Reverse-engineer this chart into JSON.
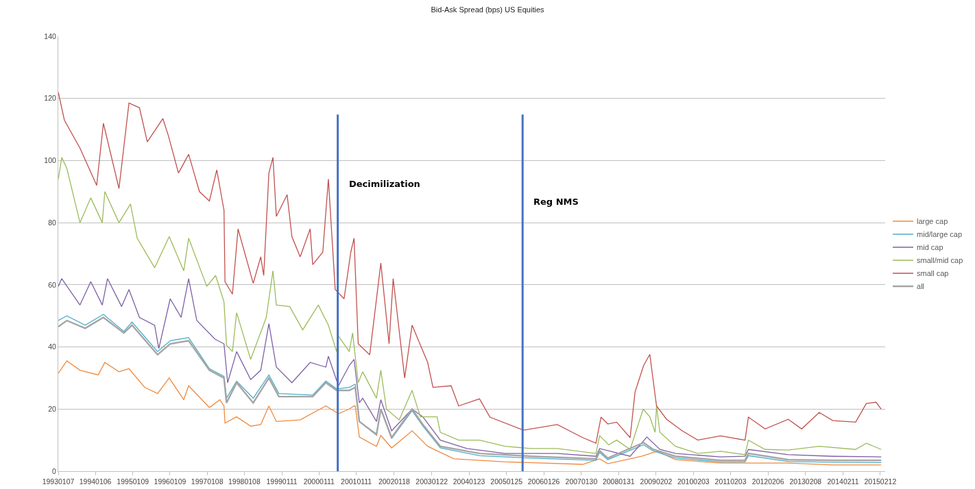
{
  "chart_data": {
    "type": "line",
    "title": "Bid-Ask Spread (bps) US Equities",
    "xlim": [
      "1993-01-07",
      "2015-04-01"
    ],
    "xticks": [
      {
        "value": "1993-01-07",
        "label": "19930107"
      },
      {
        "value": "1994-01-06",
        "label": "19940106"
      },
      {
        "value": "1995-01-09",
        "label": "19950109"
      },
      {
        "value": "1996-01-09",
        "label": "19960109"
      },
      {
        "value": "1997-01-08",
        "label": "19970108"
      },
      {
        "value": "1998-01-08",
        "label": "19980108"
      },
      {
        "value": "1999-01-11",
        "label": "19990111"
      },
      {
        "value": "2000-01-11",
        "label": "20000111"
      },
      {
        "value": "2001-01-11",
        "label": "20010111"
      },
      {
        "value": "2002-01-18",
        "label": "20020118"
      },
      {
        "value": "2003-01-22",
        "label": "20030122"
      },
      {
        "value": "2004-01-23",
        "label": "20040123"
      },
      {
        "value": "2005-01-25",
        "label": "20050125"
      },
      {
        "value": "2006-01-26",
        "label": "20060126"
      },
      {
        "value": "2007-01-30",
        "label": "20070130"
      },
      {
        "value": "2008-01-31",
        "label": "20080131"
      },
      {
        "value": "2009-02-02",
        "label": "20090202"
      },
      {
        "value": "2010-02-03",
        "label": "20100203"
      },
      {
        "value": "2011-02-03",
        "label": "20110203"
      },
      {
        "value": "2012-02-06",
        "label": "20120206"
      },
      {
        "value": "2013-02-08",
        "label": "20130208"
      },
      {
        "value": "2014-02-11",
        "label": "20140211"
      },
      {
        "value": "2015-02-12",
        "label": "20150212"
      }
    ],
    "ylim": [
      0,
      140
    ],
    "yticks": [
      0,
      20,
      40,
      60,
      80,
      100,
      120,
      140
    ],
    "grid": "y",
    "legend": "right",
    "marker": "none",
    "line_style": "solid",
    "ref_lines": [
      {
        "axis": "x",
        "value": "2000-07-13",
        "label": "Decimilization",
        "color": "#4472c4"
      },
      {
        "axis": "x",
        "value": "2005-07-02",
        "label": "Reg NMS",
        "color": "#4472c4"
      }
    ],
    "series": [
      {
        "name": "large cap",
        "color": "#f08a3c",
        "x": [
          "1993-01-07",
          "1993-04-01",
          "1993-08-08",
          "1994-02-03",
          "1994-04-09",
          "1994-08-26",
          "1994-12-02",
          "1995-05-05",
          "1995-09-09",
          "1996-01-01",
          "1996-05-23",
          "1996-07-10",
          "1997-01-30",
          "1997-05-12",
          "1997-06-22",
          "1997-07-02",
          "1997-10-24",
          "1998-03-11",
          "1998-06-18",
          "1998-09-06",
          "1998-11-18",
          "1999-07-10",
          "2000-03-18",
          "2000-07-20",
          "2000-11-03",
          "2000-12-20",
          "2001-01-01",
          "2001-02-10",
          "2001-07-28",
          "2001-09-09",
          "2001-12-24",
          "2002-07-13",
          "2002-12-13",
          "2003-08-26",
          "2005-01-11",
          "2007-02-13",
          "2007-07-28",
          "2007-10-16",
          "2008-09-13",
          "2009-02-13",
          "2009-08-11",
          "2010-10-27",
          "2011-07-20",
          "2012-08-22",
          "2013-11-03",
          "2015-02-21"
        ],
        "values": [
          31.5,
          35.5,
          32.5,
          31,
          35,
          32,
          33,
          27,
          25,
          30,
          23,
          27.5,
          20.5,
          23,
          21,
          15.5,
          17.5,
          14.5,
          15,
          21,
          16,
          16.5,
          21,
          18.5,
          20,
          21,
          21,
          11,
          8,
          11.5,
          7.5,
          13,
          8,
          4,
          3,
          2.2,
          4,
          2.4,
          4.8,
          6.4,
          3.7,
          2.6,
          2.6,
          2.6,
          2,
          2
        ]
      },
      {
        "name": "mid/large cap",
        "color": "#4bacc6",
        "x": [
          "1993-01-07",
          "1993-04-01",
          "1993-09-28",
          "1994-03-26",
          "1994-10-13",
          "1995-01-01",
          "1995-09-09",
          "1996-01-11",
          "1996-07-10",
          "1997-01-30",
          "1997-06-22",
          "1997-07-17",
          "1997-10-24",
          "1998-04-05",
          "1998-09-06",
          "1998-12-13",
          "1999-11-10",
          "2000-03-18",
          "2000-07-02",
          "2000-11-03",
          "2001-01-01",
          "2001-02-10",
          "2001-07-28",
          "2001-09-09",
          "2001-12-24",
          "2002-07-13",
          "2002-10-27",
          "2003-04-16",
          "2004-05-05",
          "2005-09-21",
          "2007-06-22",
          "2007-07-28",
          "2007-10-16",
          "2008-10-02",
          "2009-01-04",
          "2009-08-11",
          "2010-10-27",
          "2011-06-25",
          "2011-07-28",
          "2012-08-22",
          "2013-11-03",
          "2015-02-21"
        ],
        "values": [
          48.5,
          50,
          47,
          50.5,
          45,
          48,
          38.5,
          42,
          43,
          33,
          30.5,
          23.5,
          29,
          23.5,
          31,
          25,
          24.5,
          29,
          26.5,
          27,
          28,
          16,
          12,
          20,
          10.5,
          19.5,
          14.5,
          7.5,
          5,
          4.2,
          3.5,
          6,
          3.7,
          8.5,
          6.5,
          4.2,
          3,
          3,
          5,
          3.1,
          2.9,
          2.8
        ]
      },
      {
        "name": "mid cap",
        "color": "#7d5fa6",
        "x": [
          "1993-01-07",
          "1993-02-10",
          "1993-08-08",
          "1993-11-22",
          "1994-03-15",
          "1994-05-05",
          "1994-09-21",
          "1994-12-02",
          "1995-03-15",
          "1995-08-11",
          "1995-09-21",
          "1996-01-11",
          "1996-04-27",
          "1996-07-10",
          "1996-09-28",
          "1997-03-26",
          "1997-06-22",
          "1997-07-28",
          "1997-10-24",
          "1998-03-11",
          "1998-06-18",
          "1998-09-06",
          "1998-11-18",
          "1999-04-20",
          "1999-10-16",
          "2000-03-18",
          "2000-04-12",
          "2000-07-20",
          "2000-11-03",
          "2000-12-20",
          "2001-02-10",
          "2001-03-15",
          "2001-07-28",
          "2001-09-09",
          "2001-12-24",
          "2002-07-13",
          "2002-10-27",
          "2003-04-16",
          "2004-01-01",
          "2005-01-11",
          "2006-06-07",
          "2007-06-22",
          "2007-07-28",
          "2008-05-23",
          "2008-11-03",
          "2009-03-11",
          "2009-08-11",
          "2010-10-27",
          "2011-06-25",
          "2011-07-28",
          "2012-08-22",
          "2013-11-03",
          "2015-02-21"
        ],
        "values": [
          59.5,
          62,
          53.5,
          61,
          53.5,
          62,
          53,
          58.5,
          49.5,
          47,
          39.5,
          55.5,
          49.5,
          62,
          48.5,
          42.5,
          41,
          28.5,
          38.5,
          29.5,
          32.5,
          47.5,
          33.5,
          28.5,
          35,
          33.5,
          37,
          27.5,
          34,
          36,
          22,
          23.5,
          16,
          23,
          13,
          20,
          17.5,
          10,
          7.3,
          5.7,
          5.7,
          4.8,
          7.3,
          4.8,
          11,
          7,
          5.7,
          4.6,
          4.8,
          7,
          5.3,
          4.8,
          4.6
        ]
      },
      {
        "name": "small/mid cap",
        "color": "#9bbb59",
        "x": [
          "1993-01-07",
          "1993-02-10",
          "1993-04-01",
          "1993-08-08",
          "1993-11-22",
          "1994-03-15",
          "1994-04-09",
          "1994-08-26",
          "1994-12-17",
          "1995-02-21",
          "1995-08-11",
          "1996-01-01",
          "1996-05-23",
          "1996-07-10",
          "1997-01-04",
          "1997-04-01",
          "1997-06-22",
          "1997-07-17",
          "1997-09-13",
          "1997-10-24",
          "1998-03-11",
          "1998-08-11",
          "1998-10-16",
          "1998-11-18",
          "1999-03-29",
          "1999-08-04",
          "2000-01-04",
          "2000-04-12",
          "2000-07-02",
          "2000-07-20",
          "2000-11-03",
          "2000-12-06",
          "2001-01-30",
          "2001-03-15",
          "2001-07-28",
          "2001-09-09",
          "2001-11-03",
          "2002-03-08",
          "2002-07-13",
          "2002-10-02",
          "2003-03-15",
          "2003-04-16",
          "2003-10-13",
          "2004-05-05",
          "2005-01-11",
          "2005-09-21",
          "2006-06-07",
          "2007-06-22",
          "2007-07-28",
          "2007-10-24",
          "2008-01-11",
          "2008-05-23",
          "2008-09-28",
          "2008-12-02",
          "2009-01-23",
          "2009-02-06",
          "2009-03-11",
          "2009-08-11",
          "2010-03-18",
          "2010-10-27",
          "2011-06-25",
          "2011-07-28",
          "2012-01-08",
          "2012-08-22",
          "2013-06-22",
          "2014-06-15",
          "2014-09-28",
          "2015-02-21"
        ],
        "values": [
          94,
          101,
          97.5,
          80,
          88,
          80,
          90,
          80,
          86,
          75,
          65.5,
          75.5,
          64.5,
          75,
          59.5,
          63,
          54.5,
          40.5,
          38.5,
          51,
          36,
          49.5,
          64.5,
          53.5,
          53,
          45.5,
          53.5,
          47,
          38.5,
          43.5,
          38.5,
          44.5,
          28.5,
          32,
          23.5,
          32.5,
          20,
          16.5,
          26,
          17.5,
          17.5,
          12.5,
          10,
          10,
          8,
          7.3,
          7.3,
          5.7,
          11.5,
          8.5,
          10,
          7,
          20,
          17.5,
          12.5,
          21,
          12.5,
          8,
          5.7,
          6.4,
          5.3,
          10,
          7,
          6.8,
          8,
          7,
          9,
          7
        ]
      },
      {
        "name": "small cap",
        "color": "#c0504d",
        "x": [
          "1993-01-07",
          "1993-03-08",
          "1993-08-08",
          "1994-01-19",
          "1994-03-26",
          "1994-08-26",
          "1994-12-02",
          "1995-03-15",
          "1995-05-31",
          "1995-10-31",
          "1995-12-24",
          "1996-04-01",
          "1996-07-10",
          "1996-10-24",
          "1997-01-30",
          "1997-04-12",
          "1997-06-22",
          "1997-07-02",
          "1997-09-13",
          "1997-11-07",
          "1998-04-05",
          "1998-06-18",
          "1998-07-17",
          "1998-09-06",
          "1998-10-16",
          "1998-11-18",
          "1999-03-04",
          "1999-04-20",
          "1999-07-10",
          "1999-10-16",
          "1999-11-10",
          "2000-02-17",
          "2000-04-12",
          "2000-06-18",
          "2000-09-13",
          "2000-11-18",
          "2000-12-20",
          "2001-01-30",
          "2001-05-23",
          "2001-09-09",
          "2001-11-29",
          "2002-01-08",
          "2002-05-01",
          "2002-07-13",
          "2002-12-13",
          "2003-02-03",
          "2003-07-31",
          "2003-10-13",
          "2004-05-05",
          "2004-08-15",
          "2005-07-10",
          "2006-06-07",
          "2007-02-13",
          "2007-06-22",
          "2007-08-11",
          "2007-10-16",
          "2008-01-11",
          "2008-05-23",
          "2008-07-10",
          "2008-10-02",
          "2008-12-02",
          "2009-02-06",
          "2009-05-16",
          "2009-10-16",
          "2010-03-18",
          "2010-10-27",
          "2011-06-25",
          "2011-07-28",
          "2012-01-08",
          "2012-08-22",
          "2013-01-01",
          "2013-06-22",
          "2013-11-03",
          "2014-06-15",
          "2014-09-28",
          "2015-01-01",
          "2015-02-21"
        ],
        "values": [
          122,
          113,
          104,
          92,
          112,
          91,
          118.5,
          117,
          106,
          113.5,
          108,
          96,
          102,
          90,
          87,
          97,
          84,
          61,
          57,
          78,
          60.5,
          69,
          63,
          96,
          101,
          82,
          89,
          75.5,
          69,
          78,
          66.5,
          70.5,
          94,
          58.5,
          55.5,
          70.5,
          75,
          41,
          37.5,
          67,
          41,
          62,
          30,
          47,
          35,
          27,
          27.5,
          21,
          23.3,
          17.4,
          13.2,
          15,
          10.8,
          9,
          17.4,
          15.2,
          15.8,
          10.8,
          25.5,
          34,
          37.6,
          21,
          16.7,
          13,
          10,
          11.4,
          10,
          17.4,
          13.6,
          16.7,
          13.6,
          18.9,
          16.3,
          15.8,
          21.8,
          22.2,
          20
        ]
      },
      {
        "name": "all",
        "color": "#a5a5a5",
        "x": [
          "1993-01-07",
          "1993-04-01",
          "1993-09-28",
          "1994-03-26",
          "1994-10-13",
          "1995-01-01",
          "1995-09-09",
          "1996-01-11",
          "1996-07-10",
          "1997-01-30",
          "1997-06-22",
          "1997-07-17",
          "1997-10-24",
          "1998-04-05",
          "1998-09-06",
          "1998-12-13",
          "1999-11-10",
          "2000-03-18",
          "2000-07-02",
          "2000-11-03",
          "2001-01-01",
          "2001-02-10",
          "2001-07-28",
          "2001-09-09",
          "2001-12-24",
          "2002-07-13",
          "2002-10-27",
          "2003-04-16",
          "2004-05-05",
          "2005-09-21",
          "2007-06-22",
          "2007-07-28",
          "2007-10-16",
          "2008-10-02",
          "2009-01-04",
          "2009-08-11",
          "2010-10-27",
          "2011-06-25",
          "2011-07-28",
          "2012-08-22",
          "2013-11-03",
          "2015-02-21"
        ],
        "values": [
          46.5,
          48.5,
          46,
          49.5,
          44.5,
          47,
          37.5,
          41,
          42,
          32.5,
          30,
          22,
          28.5,
          22,
          30,
          24,
          24,
          28.5,
          26,
          26,
          27,
          16,
          11.7,
          20,
          10.8,
          20,
          15,
          8,
          5.7,
          4.8,
          4,
          6.6,
          4.2,
          9.2,
          7,
          4.8,
          3.5,
          3.5,
          5.7,
          3.7,
          3.5,
          3.5
        ]
      }
    ]
  }
}
